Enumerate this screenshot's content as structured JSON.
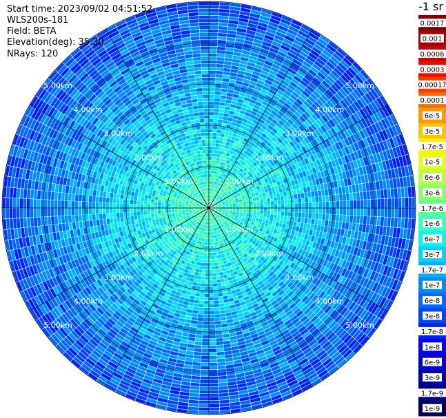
{
  "header": {
    "start_time": "Start time: 2023/09/02 04:51:52",
    "instrument": "WLS200s-181",
    "field": "Field: BETA",
    "elevation": "Elevation(deg): 35.30",
    "nrays": "NRays: 120"
  },
  "colorbar": {
    "title": "-1 sr",
    "levels": [
      {
        "label": "0.0017",
        "color": "#7f0000"
      },
      {
        "label": "0.001",
        "color": "#a50000"
      },
      {
        "label": "0.0006",
        "color": "#cc0000"
      },
      {
        "label": "0.0003",
        "color": "#f10c00"
      },
      {
        "label": "0.00017",
        "color": "#ff3c00"
      },
      {
        "label": "0.0001",
        "color": "#ff6a00"
      },
      {
        "label": "6e-5",
        "color": "#ff9800"
      },
      {
        "label": "3e-5",
        "color": "#ffc400"
      },
      {
        "label": "1.7e-5",
        "color": "#fff000"
      },
      {
        "label": "1e-5",
        "color": "#e4ff13"
      },
      {
        "label": "6e-6",
        "color": "#b8ff3f"
      },
      {
        "label": "3e-6",
        "color": "#8cff6a"
      },
      {
        "label": "1.7e-6",
        "color": "#60ff96"
      },
      {
        "label": "1e-6",
        "color": "#36ffc1"
      },
      {
        "label": "6e-7",
        "color": "#0cf4eb"
      },
      {
        "label": "3e-7",
        "color": "#00d4ff"
      },
      {
        "label": "1.7e-7",
        "color": "#00b0ff"
      },
      {
        "label": "1e-7",
        "color": "#008cff"
      },
      {
        "label": "6e-8",
        "color": "#0068ff"
      },
      {
        "label": "3e-8",
        "color": "#0044ff"
      },
      {
        "label": "1.7e-8",
        "color": "#0020ff"
      },
      {
        "label": "1e-8",
        "color": "#0000f1"
      },
      {
        "label": "6e-9",
        "color": "#0000cc"
      },
      {
        "label": "3e-9",
        "color": "#0000a8"
      },
      {
        "label": "1.7e-9",
        "color": "#000084"
      },
      {
        "label": "1e-9",
        "color": "#00005f"
      }
    ]
  },
  "plot": {
    "range_rings_km": [
      1,
      2,
      3,
      4,
      5
    ],
    "ring_labels": [
      "1.00km",
      "2.00km",
      "3.00km",
      "4.00km",
      "5.00km"
    ],
    "max_range_km": 5.0,
    "radial_lines": 12,
    "n_rays": 120,
    "ring_line_color": "#000000"
  }
}
